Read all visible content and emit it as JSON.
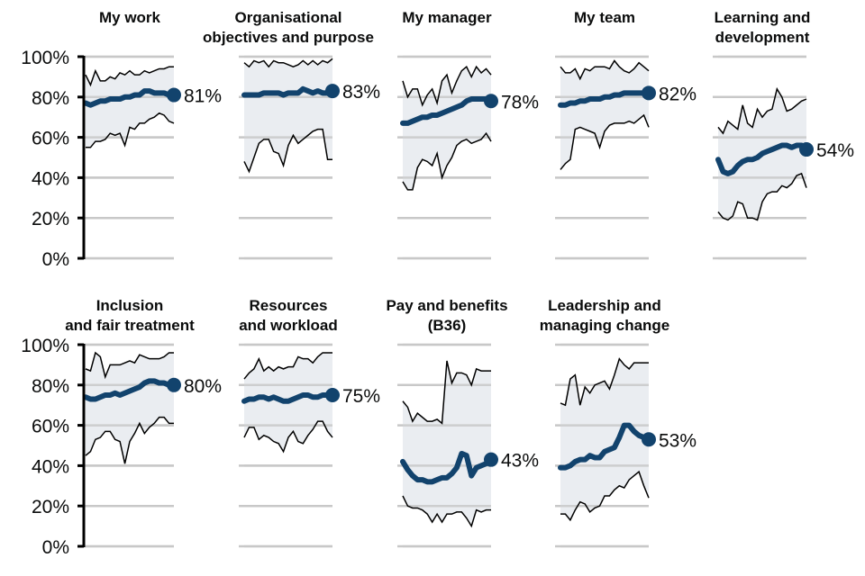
{
  "chart_data": {
    "type": "line",
    "title": "",
    "xlabel": "",
    "ylabel": "",
    "ylim": [
      0,
      100
    ],
    "yticks": [
      "0%",
      "20%",
      "40%",
      "60%",
      "80%",
      "100%"
    ],
    "grid": true,
    "colors": {
      "median": "#12436d",
      "range_fill": "#e6eaef",
      "range_line": "#000000",
      "grid": "#c8c8c8",
      "axis": "#000000"
    },
    "panels": [
      {
        "title_lines": [
          "My work"
        ],
        "end_label": "81%",
        "median": [
          77,
          76,
          77,
          78,
          78,
          79,
          79,
          79,
          80,
          80,
          81,
          81,
          83,
          83,
          82,
          82,
          82,
          81,
          81
        ],
        "max": [
          91,
          86,
          93,
          88,
          88,
          90,
          89,
          92,
          91,
          93,
          91,
          91,
          93,
          92,
          93,
          94,
          94,
          95,
          95
        ],
        "min": [
          55,
          55,
          58,
          58,
          59,
          62,
          61,
          62,
          56,
          65,
          64,
          67,
          67,
          69,
          70,
          72,
          71,
          68,
          67
        ]
      },
      {
        "title_lines": [
          "Organisational",
          "objectives and purpose"
        ],
        "end_label": "83%",
        "median": [
          81,
          81,
          81,
          81,
          82,
          82,
          82,
          82,
          81,
          82,
          82,
          82,
          84,
          83,
          82,
          83,
          82,
          82,
          83
        ],
        "max": [
          97,
          95,
          98,
          97,
          98,
          95,
          98,
          97,
          97,
          96,
          95,
          96,
          98,
          96,
          98,
          96,
          98,
          97,
          99
        ],
        "min": [
          48,
          43,
          50,
          57,
          59,
          59,
          53,
          52,
          46,
          56,
          61,
          57,
          59,
          61,
          63,
          64,
          64,
          49,
          49
        ]
      },
      {
        "title_lines": [
          "My manager"
        ],
        "end_label": "78%",
        "median": [
          67,
          67,
          68,
          69,
          70,
          70,
          71,
          71,
          72,
          73,
          74,
          75,
          76,
          78,
          79,
          79,
          79,
          79,
          78
        ],
        "max": [
          88,
          80,
          84,
          84,
          76,
          81,
          84,
          77,
          88,
          91,
          82,
          88,
          93,
          95,
          90,
          95,
          92,
          94,
          91
        ],
        "min": [
          38,
          34,
          34,
          45,
          49,
          48,
          46,
          52,
          40,
          46,
          50,
          56,
          58,
          59,
          57,
          58,
          59,
          62,
          58
        ]
      },
      {
        "title_lines": [
          "My team"
        ],
        "end_label": "82%",
        "median": [
          76,
          76,
          77,
          77,
          78,
          78,
          79,
          79,
          79,
          80,
          80,
          81,
          81,
          82,
          82,
          82,
          82,
          82,
          82
        ],
        "max": [
          95,
          92,
          92,
          94,
          89,
          94,
          93,
          95,
          95,
          95,
          94,
          98,
          95,
          93,
          92,
          94,
          97,
          95,
          93
        ],
        "min": [
          44,
          47,
          49,
          64,
          65,
          64,
          63,
          62,
          55,
          63,
          66,
          67,
          67,
          67,
          68,
          67,
          69,
          71,
          65
        ]
      },
      {
        "title_lines": [
          "Learning and",
          "development"
        ],
        "end_label": "54%",
        "median": [
          49,
          43,
          42,
          43,
          46,
          48,
          49,
          49,
          50,
          52,
          53,
          54,
          55,
          56,
          56,
          55,
          56,
          56,
          54
        ],
        "max": [
          65,
          62,
          68,
          66,
          64,
          76,
          67,
          65,
          74,
          70,
          73,
          74,
          84,
          80,
          73,
          74,
          76,
          78,
          79
        ],
        "min": [
          23,
          20,
          19,
          21,
          28,
          27,
          20,
          20,
          19,
          28,
          32,
          33,
          33,
          36,
          35,
          37,
          41,
          42,
          35
        ]
      },
      {
        "title_lines": [
          "Inclusion",
          "and fair treatment"
        ],
        "end_label": "80%",
        "median": [
          74,
          73,
          73,
          74,
          75,
          75,
          76,
          75,
          76,
          77,
          78,
          79,
          81,
          82,
          82,
          81,
          81,
          80,
          80
        ],
        "max": [
          88,
          87,
          96,
          94,
          84,
          90,
          90,
          90,
          91,
          92,
          91,
          95,
          94,
          93,
          93,
          93,
          94,
          96,
          96
        ],
        "min": [
          45,
          47,
          53,
          54,
          57,
          57,
          53,
          52,
          41,
          52,
          56,
          61,
          56,
          59,
          61,
          64,
          64,
          61,
          61
        ]
      },
      {
        "title_lines": [
          "Resources",
          "and workload"
        ],
        "end_label": "75%",
        "median": [
          72,
          73,
          73,
          74,
          74,
          73,
          74,
          73,
          72,
          72,
          73,
          74,
          75,
          75,
          74,
          74,
          75,
          75,
          75
        ],
        "max": [
          83,
          86,
          88,
          93,
          87,
          89,
          87,
          89,
          88,
          89,
          89,
          94,
          93,
          93,
          91,
          94,
          96,
          96,
          96
        ],
        "min": [
          54,
          59,
          59,
          53,
          55,
          54,
          52,
          51,
          47,
          54,
          57,
          52,
          51,
          55,
          58,
          62,
          62,
          57,
          54
        ]
      },
      {
        "title_lines": [
          "Pay and benefits",
          "(B36)"
        ],
        "end_label": "43%",
        "median": [
          42,
          38,
          35,
          33,
          33,
          32,
          32,
          33,
          34,
          34,
          36,
          39,
          46,
          45,
          35,
          39,
          40,
          41,
          43
        ],
        "max": [
          72,
          69,
          62,
          66,
          64,
          62,
          62,
          63,
          61,
          92,
          81,
          86,
          86,
          85,
          80,
          88,
          87,
          87,
          87
        ],
        "min": [
          25,
          20,
          19,
          19,
          18,
          16,
          12,
          16,
          12,
          16,
          16,
          17,
          17,
          14,
          10,
          18,
          17,
          18,
          18
        ]
      },
      {
        "title_lines": [
          "Leadership and",
          "managing change"
        ],
        "end_label": "53%",
        "median": [
          39,
          39,
          40,
          42,
          43,
          43,
          45,
          44,
          44,
          47,
          48,
          49,
          54,
          60,
          60,
          57,
          55,
          54,
          53
        ],
        "max": [
          71,
          70,
          83,
          85,
          70,
          79,
          76,
          80,
          81,
          82,
          78,
          85,
          93,
          90,
          88,
          91,
          91,
          91,
          91
        ],
        "min": [
          16,
          16,
          13,
          18,
          22,
          21,
          17,
          19,
          20,
          25,
          25,
          28,
          30,
          29,
          33,
          35,
          37,
          30,
          24
        ]
      }
    ]
  }
}
